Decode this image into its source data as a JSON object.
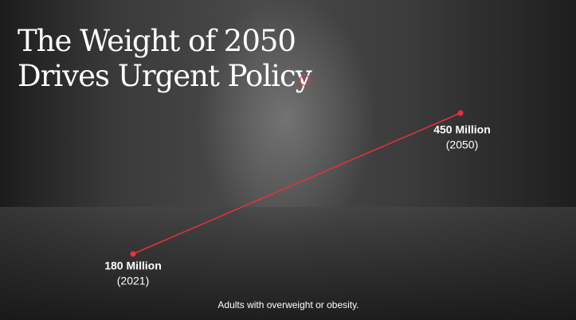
{
  "chart_data": {
    "type": "line",
    "title": "The Weight of 2050 Drives Urgent Policy",
    "categories": [
      "(2021)",
      "(2050)"
    ],
    "series": [
      {
        "color": "#e5323e",
        "values": [
          180,
          450
        ],
        "value_labels": [
          "180 Million",
          "450 Million"
        ]
      }
    ],
    "caption": "Adults with overweight or obesity."
  }
}
